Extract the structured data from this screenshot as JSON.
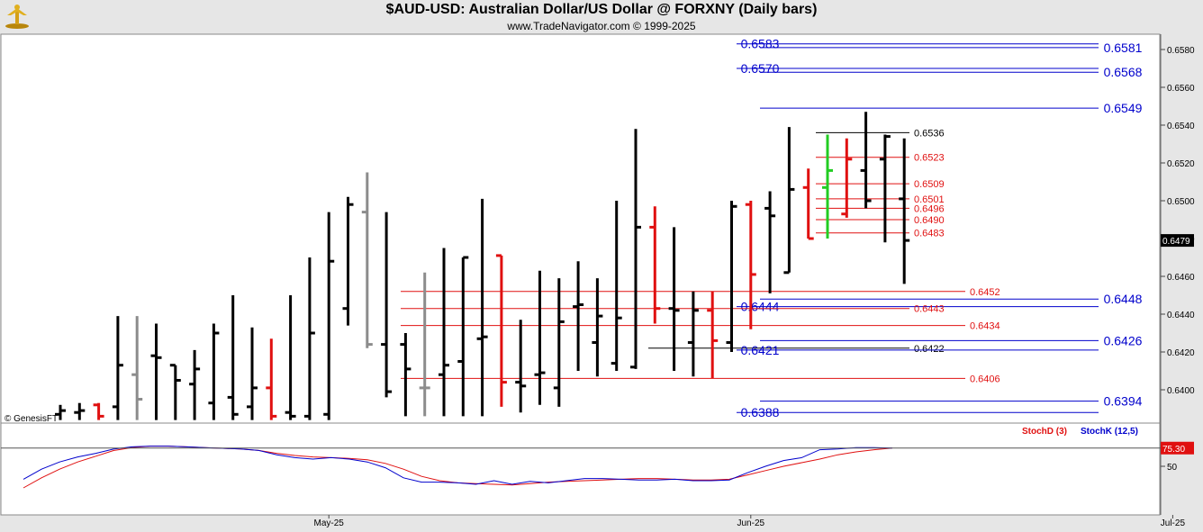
{
  "header": {
    "title": "$AUD-USD:  Australian Dollar/US Dollar @ FORXNY  (Daily bars)",
    "subtitle": "www.TradeNavigator.com © 1999-2025"
  },
  "watermark": "© GenesisFT",
  "colors": {
    "up": "#000000",
    "down": "#e01010",
    "gray": "#8c8c8c",
    "green": "#22cc22",
    "blue": "#0000cc",
    "red": "#e01010",
    "black": "#000000",
    "panel": "#ffffff",
    "background": "#e6e6e6"
  },
  "chart_data": [
    {
      "type": "ohlc",
      "title": "$AUD-USD:  Australian Dollar/US Dollar @ FORXNY  (Daily bars)",
      "ylim": [
        0.6384,
        0.6594
      ],
      "y_ticks": [
        "0.6580",
        "0.6560",
        "0.6540",
        "0.6520",
        "0.6500",
        "0.6480",
        "0.6460",
        "0.6440",
        "0.6420",
        "0.6400"
      ],
      "x_ticks": [
        {
          "label": "May-25",
          "bar": 14
        },
        {
          "label": "Jun-25",
          "bar": 36
        },
        {
          "label": "Jul-25",
          "bar": 58
        }
      ],
      "last_price": "0.6479",
      "bars": [
        {
          "o": 0.6387,
          "h": 0.6392,
          "l": 0.6384,
          "c": 0.6389,
          "color": "black"
        },
        {
          "o": 0.6388,
          "h": 0.6393,
          "l": 0.6384,
          "c": 0.6389,
          "color": "black"
        },
        {
          "o": 0.6392,
          "h": 0.6393,
          "l": 0.6384,
          "c": 0.6386,
          "color": "red"
        },
        {
          "o": 0.6391,
          "h": 0.6439,
          "l": 0.6384,
          "c": 0.6413,
          "color": "black"
        },
        {
          "o": 0.6408,
          "h": 0.6439,
          "l": 0.6384,
          "c": 0.6395,
          "color": "gray"
        },
        {
          "o": 0.6418,
          "h": 0.6435,
          "l": 0.6384,
          "c": 0.6417,
          "color": "black"
        },
        {
          "o": 0.6413,
          "h": 0.6413,
          "l": 0.6384,
          "c": 0.6405,
          "color": "black"
        },
        {
          "o": 0.6403,
          "h": 0.6421,
          "l": 0.6384,
          "c": 0.6411,
          "color": "black"
        },
        {
          "o": 0.6393,
          "h": 0.6435,
          "l": 0.6384,
          "c": 0.643,
          "color": "black"
        },
        {
          "o": 0.6396,
          "h": 0.645,
          "l": 0.6384,
          "c": 0.6387,
          "color": "black"
        },
        {
          "o": 0.6391,
          "h": 0.6433,
          "l": 0.6384,
          "c": 0.6401,
          "color": "black"
        },
        {
          "o": 0.6401,
          "h": 0.6427,
          "l": 0.6384,
          "c": 0.6386,
          "color": "red"
        },
        {
          "o": 0.6388,
          "h": 0.645,
          "l": 0.6384,
          "c": 0.6386,
          "color": "black"
        },
        {
          "o": 0.6386,
          "h": 0.647,
          "l": 0.6384,
          "c": 0.643,
          "color": "black"
        },
        {
          "o": 0.6387,
          "h": 0.6494,
          "l": 0.6384,
          "c": 0.6468,
          "color": "black"
        },
        {
          "o": 0.6443,
          "h": 0.6502,
          "l": 0.6434,
          "c": 0.6498,
          "color": "black"
        },
        {
          "o": 0.6494,
          "h": 0.6515,
          "l": 0.6422,
          "c": 0.6424,
          "color": "gray"
        },
        {
          "o": 0.6424,
          "h": 0.6494,
          "l": 0.6396,
          "c": 0.6399,
          "color": "black"
        },
        {
          "o": 0.6424,
          "h": 0.643,
          "l": 0.6386,
          "c": 0.6411,
          "color": "black"
        },
        {
          "o": 0.6401,
          "h": 0.6462,
          "l": 0.6386,
          "c": 0.6401,
          "color": "gray"
        },
        {
          "o": 0.6408,
          "h": 0.6475,
          "l": 0.6386,
          "c": 0.6413,
          "color": "black"
        },
        {
          "o": 0.6415,
          "h": 0.647,
          "l": 0.6386,
          "c": 0.647,
          "color": "black"
        },
        {
          "o": 0.6427,
          "h": 0.6501,
          "l": 0.6386,
          "c": 0.6428,
          "color": "black"
        },
        {
          "o": 0.6471,
          "h": 0.6471,
          "l": 0.6391,
          "c": 0.6404,
          "color": "red"
        },
        {
          "o": 0.6404,
          "h": 0.6437,
          "l": 0.6388,
          "c": 0.6402,
          "color": "black"
        },
        {
          "o": 0.6408,
          "h": 0.6463,
          "l": 0.6392,
          "c": 0.6409,
          "color": "black"
        },
        {
          "o": 0.6401,
          "h": 0.6459,
          "l": 0.6391,
          "c": 0.6436,
          "color": "black"
        },
        {
          "o": 0.6444,
          "h": 0.6468,
          "l": 0.641,
          "c": 0.6445,
          "color": "black"
        },
        {
          "o": 0.6425,
          "h": 0.6459,
          "l": 0.6407,
          "c": 0.6439,
          "color": "black"
        },
        {
          "o": 0.6414,
          "h": 0.65,
          "l": 0.641,
          "c": 0.6438,
          "color": "black"
        },
        {
          "o": 0.6412,
          "h": 0.6538,
          "l": 0.6411,
          "c": 0.6486,
          "color": "black"
        },
        {
          "o": 0.6486,
          "h": 0.6497,
          "l": 0.6435,
          "c": 0.6443,
          "color": "red"
        },
        {
          "o": 0.6443,
          "h": 0.6486,
          "l": 0.641,
          "c": 0.6442,
          "color": "black"
        },
        {
          "o": 0.6425,
          "h": 0.6452,
          "l": 0.6407,
          "c": 0.6442,
          "color": "black"
        },
        {
          "o": 0.6442,
          "h": 0.6452,
          "l": 0.6406,
          "c": 0.6426,
          "color": "red"
        },
        {
          "o": 0.6425,
          "h": 0.65,
          "l": 0.642,
          "c": 0.6497,
          "color": "black"
        },
        {
          "o": 0.6498,
          "h": 0.65,
          "l": 0.6432,
          "c": 0.6461,
          "color": "red"
        },
        {
          "o": 0.6496,
          "h": 0.6505,
          "l": 0.6451,
          "c": 0.6492,
          "color": "black"
        },
        {
          "o": 0.6462,
          "h": 0.6539,
          "l": 0.6462,
          "c": 0.6506,
          "color": "black"
        },
        {
          "o": 0.6507,
          "h": 0.6517,
          "l": 0.648,
          "c": 0.648,
          "color": "red"
        },
        {
          "o": 0.6507,
          "h": 0.6535,
          "l": 0.648,
          "c": 0.6516,
          "color": "green"
        },
        {
          "o": 0.6493,
          "h": 0.6533,
          "l": 0.6491,
          "c": 0.6522,
          "color": "red"
        },
        {
          "o": 0.6516,
          "h": 0.6547,
          "l": 0.6496,
          "c": 0.65,
          "color": "black"
        },
        {
          "o": 0.6522,
          "h": 0.6535,
          "l": 0.6478,
          "c": 0.6534,
          "color": "black"
        },
        {
          "o": 0.6501,
          "h": 0.6533,
          "l": 0.6456,
          "c": 0.6479,
          "color": "black"
        }
      ],
      "levels": [
        {
          "value": 0.6583,
          "label": "0.6583",
          "side": "left",
          "color": "blue"
        },
        {
          "value": 0.6581,
          "label": "0.6581",
          "side": "right",
          "color": "blue"
        },
        {
          "value": 0.657,
          "label": "0.6570",
          "side": "left",
          "color": "blue"
        },
        {
          "value": 0.6568,
          "label": "0.6568",
          "side": "right",
          "color": "blue"
        },
        {
          "value": 0.6549,
          "label": "0.6549",
          "side": "right",
          "color": "blue"
        },
        {
          "value": 0.6536,
          "label": "0.6536",
          "side": "mid",
          "color": "black"
        },
        {
          "value": 0.6523,
          "label": "0.6523",
          "side": "mid",
          "color": "red"
        },
        {
          "value": 0.6509,
          "label": "0.6509",
          "side": "mid",
          "color": "red"
        },
        {
          "value": 0.6501,
          "label": "0.6501",
          "side": "mid",
          "color": "red"
        },
        {
          "value": 0.6496,
          "label": "0.6496",
          "side": "mid",
          "color": "red"
        },
        {
          "value": 0.649,
          "label": "0.6490",
          "side": "mid",
          "color": "red"
        },
        {
          "value": 0.6483,
          "label": "0.6483",
          "side": "mid",
          "color": "red"
        },
        {
          "value": 0.6452,
          "label": "0.6452",
          "side": "mid",
          "color": "red"
        },
        {
          "value": 0.6448,
          "label": "0.6448",
          "side": "right",
          "color": "blue"
        },
        {
          "value": 0.6444,
          "label": "0.6444",
          "side": "left",
          "color": "blue"
        },
        {
          "value": 0.6443,
          "label": "0.6443",
          "side": "mid",
          "color": "red"
        },
        {
          "value": 0.6434,
          "label": "0.6434",
          "side": "mid",
          "color": "red"
        },
        {
          "value": 0.6426,
          "label": "0.6426",
          "side": "right",
          "color": "blue"
        },
        {
          "value": 0.6422,
          "label": "0.6422",
          "side": "mid",
          "color": "black"
        },
        {
          "value": 0.6421,
          "label": "0.6421",
          "side": "left",
          "color": "blue"
        },
        {
          "value": 0.6406,
          "label": "0.6406",
          "side": "mid",
          "color": "red"
        },
        {
          "value": 0.6394,
          "label": "0.6394",
          "side": "right",
          "color": "blue"
        },
        {
          "value": 0.6388,
          "label": "0.6388",
          "side": "left",
          "color": "blue"
        }
      ]
    },
    {
      "type": "line",
      "ylim": [
        0,
        100
      ],
      "y_ticks": [
        "50"
      ],
      "reference": 75.3,
      "reference_label": "75.30",
      "series": [
        {
          "name": "StochD (3)",
          "color": "red",
          "values": [
            20,
            34,
            46,
            56,
            64,
            72,
            76,
            78,
            78,
            77,
            76,
            75,
            74,
            72,
            68,
            65,
            63,
            62,
            61,
            59,
            54,
            46,
            36,
            30,
            27,
            26,
            25,
            24,
            26,
            28,
            29,
            30,
            31,
            32,
            33,
            33,
            32,
            31,
            31,
            32,
            38,
            44,
            50,
            55,
            60,
            66,
            70,
            73,
            75.3
          ]
        },
        {
          "name": "StochK (12,5)",
          "color": "blue",
          "values": [
            32,
            46,
            56,
            63,
            68,
            74,
            77,
            78,
            78,
            77,
            76,
            75,
            74,
            72,
            66,
            62,
            60,
            62,
            60,
            56,
            48,
            34,
            28,
            28,
            27,
            25,
            30,
            25,
            29,
            27,
            30,
            33,
            33,
            32,
            31,
            31,
            32,
            30,
            30,
            31,
            41,
            50,
            58,
            62,
            73,
            74,
            76,
            76,
            75.3
          ]
        }
      ]
    }
  ]
}
